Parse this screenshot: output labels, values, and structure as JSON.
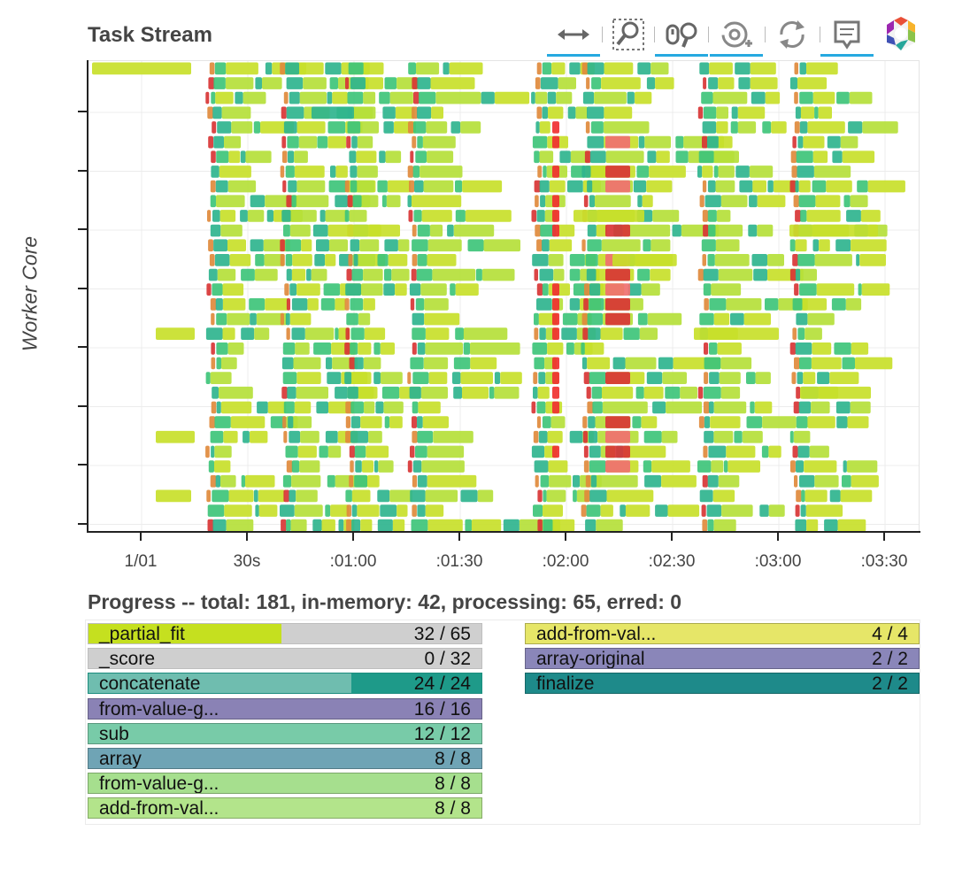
{
  "title": "Task Stream",
  "toolbar": [
    {
      "name": "xpan-tool",
      "icon": "horizontal-pan-icon",
      "active": true
    },
    {
      "name": "box-zoom-tool",
      "icon": "box-zoom-icon",
      "active": false
    },
    {
      "name": "wheel-zoom-tool",
      "icon": "wheel-zoom-icon",
      "active": true
    },
    {
      "name": "crosshair-tool",
      "icon": "crosshair-icon",
      "active": true
    },
    {
      "name": "reset-tool",
      "icon": "reset-icon",
      "active": false
    },
    {
      "name": "hover-tool",
      "icon": "hover-icon",
      "active": true
    },
    {
      "name": "bokeh-logo",
      "icon": "bokeh-logo-icon",
      "active": false
    }
  ],
  "chart_data": {
    "type": "gantt",
    "title": "Task Stream",
    "ylabel": "Worker Core",
    "xlabel": "",
    "x_ticks": [
      "1/01",
      "30s",
      ":01:00",
      ":01:30",
      ":02:00",
      ":02:30",
      ":03:00",
      ":03:30"
    ],
    "x_tick_seconds": [
      0,
      30,
      60,
      90,
      120,
      150,
      180,
      210
    ],
    "xlim_seconds": [
      -15,
      220
    ],
    "worker_cores": 32,
    "y_tick_count": 8,
    "grid": true,
    "colors": {
      "compute_lime": "#c8e02a",
      "compute_yellowgreen": "#b5df3a",
      "transfer_teal": "#2fb48e",
      "transfer_green": "#3ec47a",
      "erred_red": "#d83535",
      "deserialize_orange": "#e08a3c",
      "comm_red": "#f03030"
    },
    "task_blocks": [
      {
        "worker": 0,
        "start": -14,
        "end": 14,
        "kind": "compute_lime"
      },
      {
        "worker": 25,
        "start": 4,
        "end": 15,
        "kind": "compute_lime"
      },
      {
        "worker": 29,
        "start": 4,
        "end": 14,
        "kind": "compute_lime"
      },
      {
        "worker": 18,
        "start": 4,
        "end": 15,
        "kind": "compute_lime"
      },
      {
        "worker": 11,
        "start": 58,
        "end": 73,
        "kind": "compute_lime"
      },
      {
        "worker": 3,
        "start": 48,
        "end": 60,
        "kind": "transfer_teal"
      },
      {
        "worker": 11,
        "start": 183,
        "end": 208,
        "kind": "compute_lime"
      },
      {
        "worker": 22,
        "start": 186,
        "end": 206,
        "kind": "compute_lime"
      },
      {
        "worker": 18,
        "start": 156,
        "end": 180,
        "kind": "compute_lime"
      },
      {
        "worker": 10,
        "start": 122,
        "end": 142,
        "kind": "compute_lime"
      },
      {
        "worker": 13,
        "start": 133,
        "end": 150,
        "kind": "compute_lime"
      }
    ]
  },
  "progress": {
    "title": "Progress -- total: 181, in-memory: 42, processing: 65, erred: 0",
    "total": 181,
    "in_memory": 42,
    "processing": 65,
    "erred": 0,
    "left_items": [
      {
        "name": "_partial_fit",
        "count": "32 / 65",
        "fraction": 0.492,
        "bg": "#cfcfcf",
        "fill": "#c5e01f"
      },
      {
        "name": "_score",
        "count": "0 / 32",
        "fraction": 0.0,
        "bg": "#cfcfcf",
        "fill": "#9bd58a"
      },
      {
        "name": "concatenate",
        "count": "24 / 24",
        "fraction": 0.67,
        "bg": "#1e9a89",
        "fill": "#6fbdaf"
      },
      {
        "name": "from-value-g...",
        "count": "16 / 16",
        "fraction": 1.0,
        "bg": "#8a82b5",
        "fill": "#8a82b5"
      },
      {
        "name": "sub",
        "count": "12 / 12",
        "fraction": 1.0,
        "bg": "#78cba8",
        "fill": "#78cba8"
      },
      {
        "name": "array",
        "count": "8 / 8",
        "fraction": 1.0,
        "bg": "#6fa4b5",
        "fill": "#6fa4b5"
      },
      {
        "name": "from-value-g...",
        "count": "8 / 8",
        "fraction": 1.0,
        "bg": "#a6df8e",
        "fill": "#a6df8e"
      },
      {
        "name": "add-from-val...",
        "count": "8 / 8",
        "fraction": 1.0,
        "bg": "#b3e48b",
        "fill": "#b3e48b"
      }
    ],
    "right_items": [
      {
        "name": "add-from-val...",
        "count": "4 / 4",
        "fraction": 1.0,
        "bg": "#e6e668",
        "fill": "#e6e668"
      },
      {
        "name": "array-original",
        "count": "2 / 2",
        "fraction": 1.0,
        "bg": "#8a86b9",
        "fill": "#8a86b9"
      },
      {
        "name": "finalize",
        "count": "2 / 2",
        "fraction": 1.0,
        "bg": "#1e8a8a",
        "fill": "#1e8a8a"
      }
    ]
  }
}
